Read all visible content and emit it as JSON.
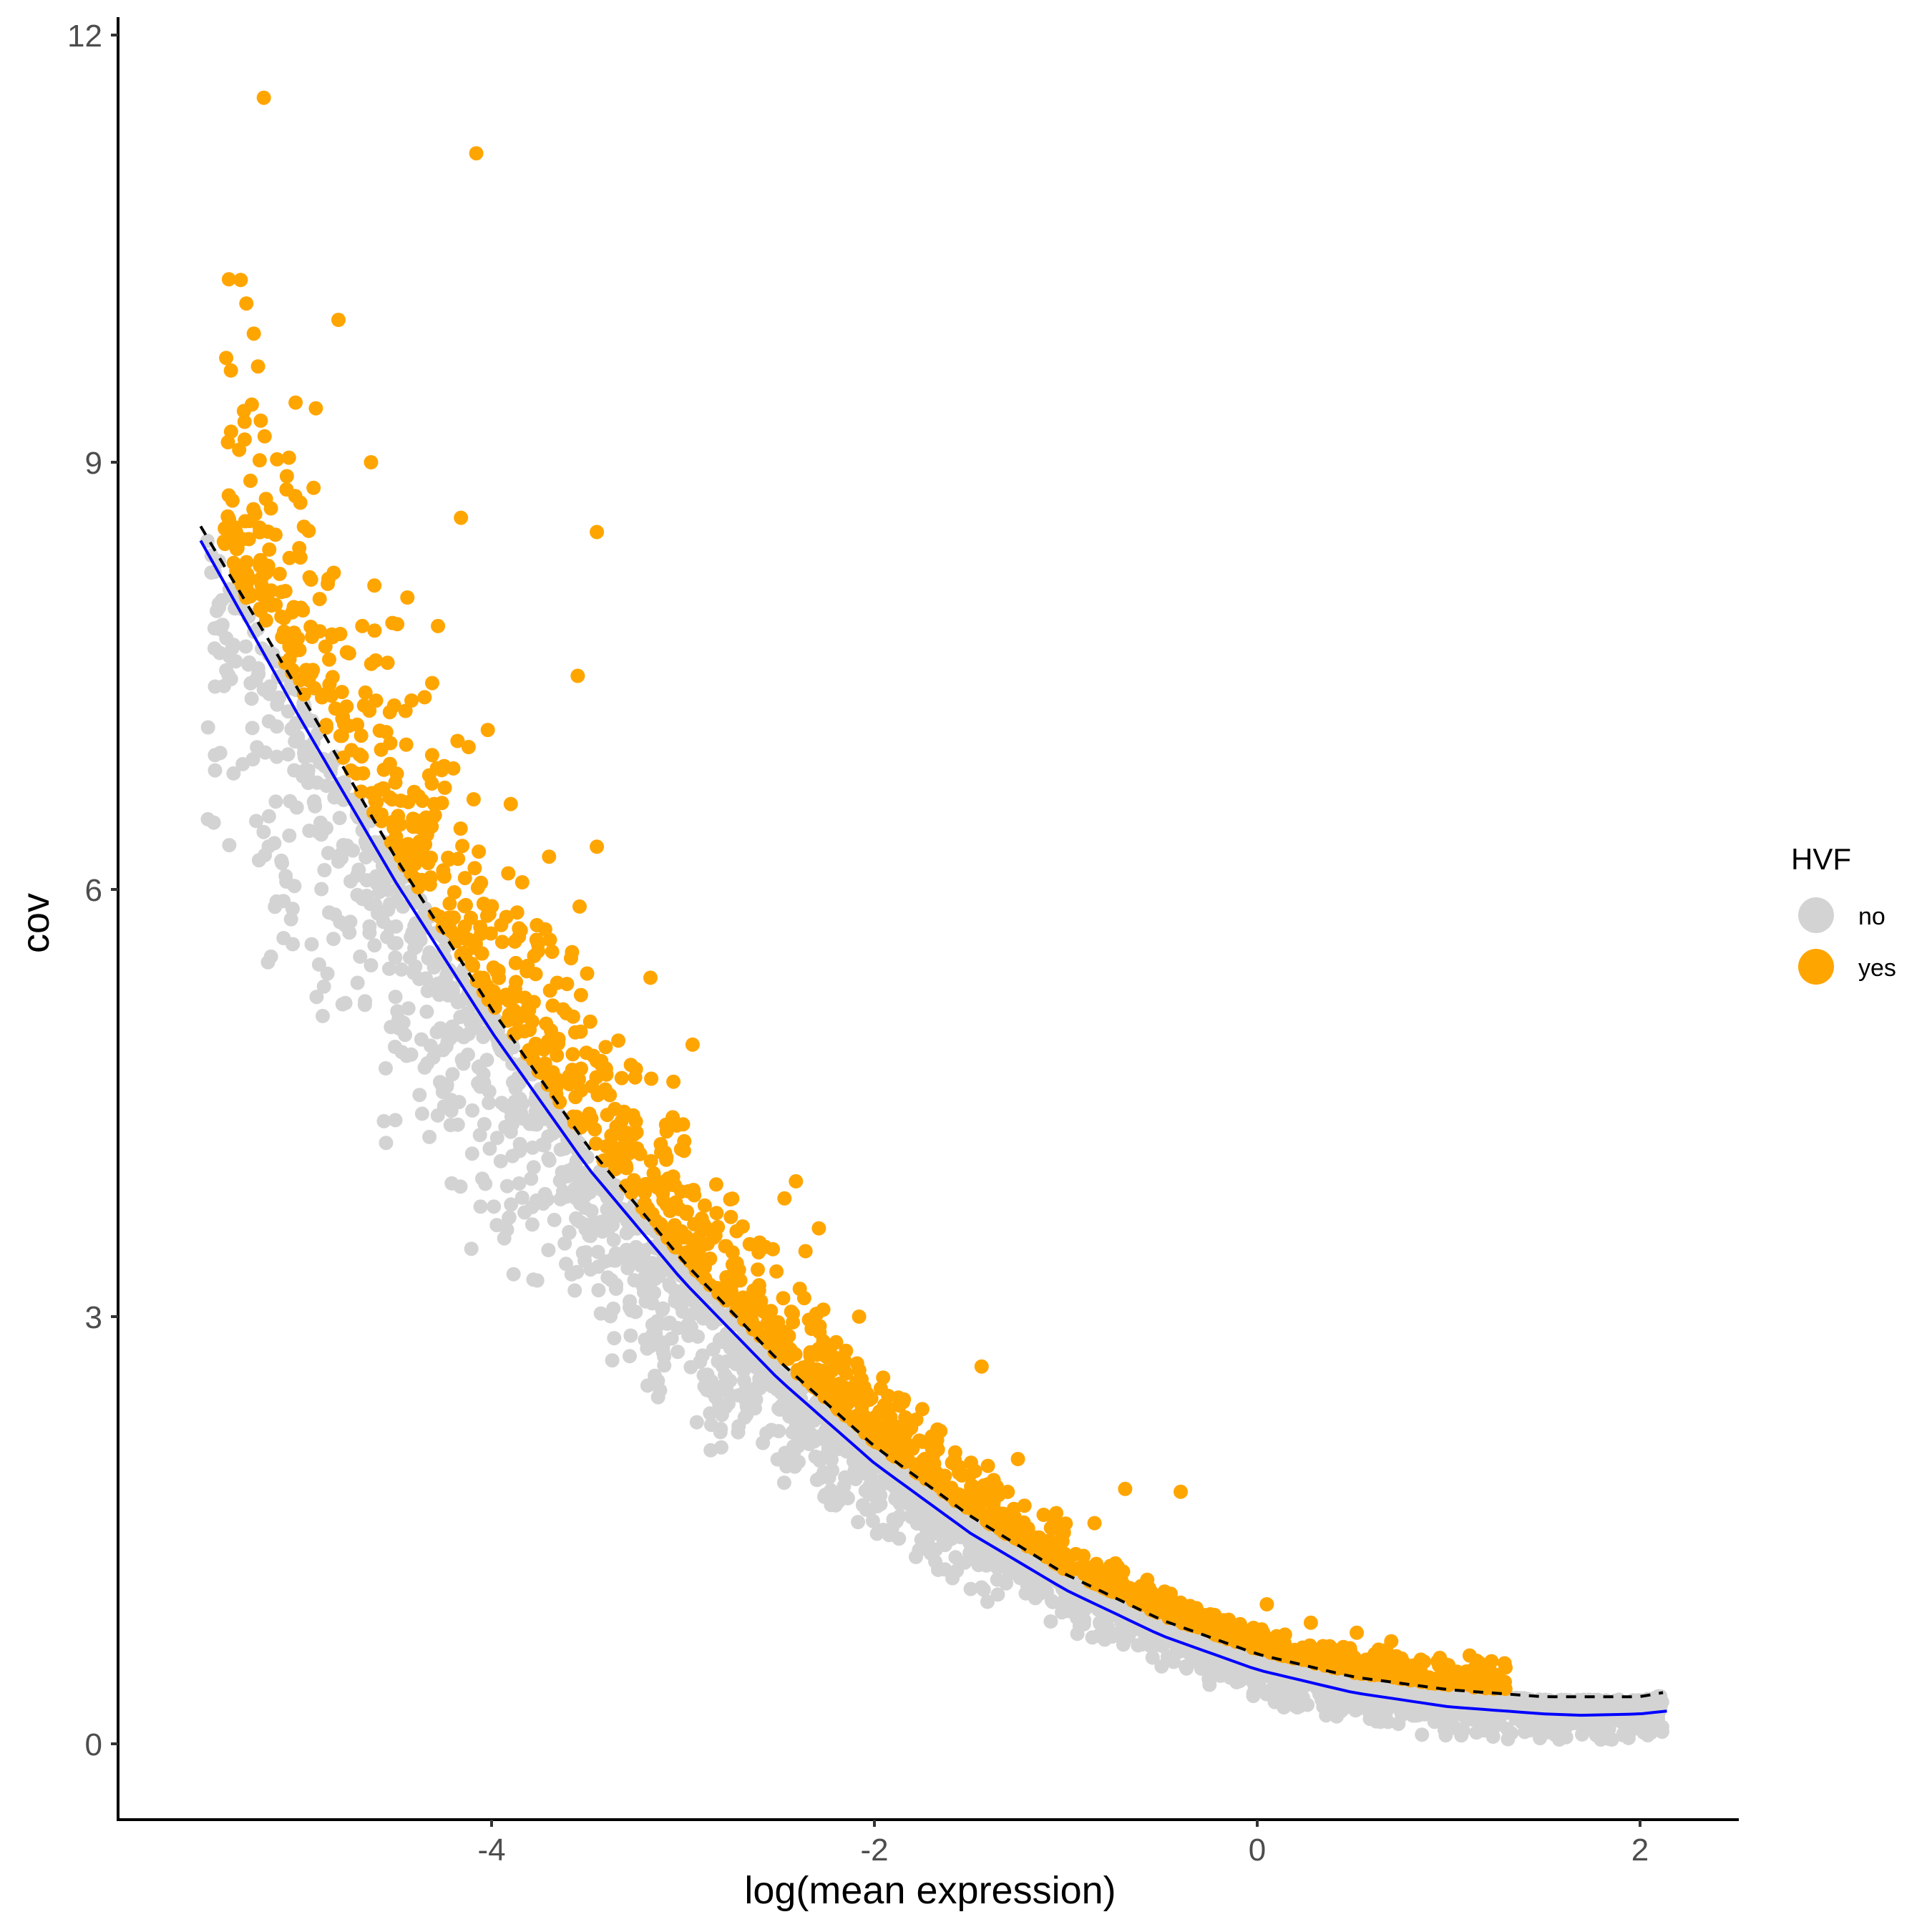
{
  "chart_data": {
    "type": "scatter",
    "title": "",
    "xlabel": "log(mean expression)",
    "ylabel": "cov",
    "xlim": [
      -5.65,
      2.5
    ],
    "ylim": [
      -0.55,
      12.3
    ],
    "x_ticks": [
      -4,
      -2,
      0,
      2
    ],
    "x_tick_labels": [
      "-4",
      "-2",
      "0",
      "2"
    ],
    "y_ticks": [
      0,
      3,
      6,
      9,
      12
    ],
    "y_tick_labels": [
      "0",
      "3",
      "6",
      "9",
      "12"
    ],
    "grid": false,
    "legend": {
      "title": "HVF",
      "position": "right",
      "entries": [
        {
          "label": "no",
          "color": "#d3d3d3"
        },
        {
          "label": "yes",
          "color": "#ffa500"
        }
      ]
    },
    "series": [
      {
        "name": "no",
        "color": "#d3d3d3",
        "description": "dense band of non-highly-variable features lying on and just below the fitted trend",
        "band": {
          "x_range": [
            -5.5,
            2.12
          ],
          "offset_below_fit": [
            0.0,
            0.45
          ],
          "count": 2600
        }
      },
      {
        "name": "yes",
        "color": "#ffa500",
        "description": "highly-variable features above the dashed threshold curve",
        "band": {
          "x_range": [
            -5.4,
            1.3
          ],
          "offset_above_fit": [
            0.05,
            0.35
          ],
          "count": 1500
        },
        "outliers": [
          [
            -5.19,
            11.56
          ],
          [
            -4.08,
            11.17
          ],
          [
            -4.8,
            10.0
          ],
          [
            -5.29,
            9.16
          ],
          [
            -4.63,
            9.0
          ],
          [
            -5.26,
            8.87
          ],
          [
            -4.93,
            8.82
          ],
          [
            -4.16,
            8.61
          ],
          [
            -3.45,
            8.51
          ],
          [
            -4.44,
            8.05
          ],
          [
            -3.55,
            7.5
          ],
          [
            -4.02,
            7.12
          ],
          [
            -3.45,
            6.3
          ],
          [
            -3.7,
            6.23
          ],
          [
            -3.54,
            5.88
          ],
          [
            -3.58,
            5.56
          ],
          [
            -3.17,
            5.38
          ],
          [
            -2.95,
            4.91
          ],
          [
            -2.47,
            3.83
          ],
          [
            -2.41,
            3.95
          ],
          [
            -2.29,
            3.62
          ],
          [
            -2.36,
            3.46
          ],
          [
            -2.08,
            3.0
          ],
          [
            -1.44,
            2.65
          ],
          [
            -0.69,
            1.79
          ],
          [
            -0.4,
            1.77
          ],
          [
            1.11,
            0.62
          ],
          [
            1.27,
            0.45
          ],
          [
            -4.28,
            7.85
          ],
          [
            -4.35,
            7.35
          ],
          [
            -4.12,
            7.0
          ],
          [
            -4.2,
            6.85
          ],
          [
            -4.3,
            6.6
          ],
          [
            -3.9,
            6.6
          ],
          [
            -3.84,
            6.05
          ],
          [
            -3.95,
            5.75
          ],
          [
            -3.72,
            5.72
          ],
          [
            -4.05,
            5.55
          ],
          [
            -3.65,
            4.95
          ],
          [
            -3.4,
            4.7
          ],
          [
            -3.25,
            4.68
          ],
          [
            -3.05,
            4.65
          ],
          [
            -3.0,
            4.35
          ],
          [
            -2.75,
            3.7
          ],
          [
            -2.72,
            3.6
          ],
          [
            -2.6,
            3.52
          ],
          [
            -2.3,
            3.02
          ],
          [
            -2.2,
            2.82
          ],
          [
            -1.85,
            2.4
          ],
          [
            -1.75,
            2.35
          ],
          [
            -1.25,
            2.0
          ],
          [
            -1.05,
            1.62
          ],
          [
            -0.85,
            1.55
          ],
          [
            0.05,
            0.98
          ],
          [
            0.28,
            0.85
          ],
          [
            0.52,
            0.78
          ],
          [
            0.7,
            0.72
          ],
          [
            0.95,
            0.55
          ],
          [
            0.45,
            0.68
          ],
          [
            0.85,
            0.52
          ]
        ]
      }
    ],
    "lines": [
      {
        "name": "fit",
        "color": "#0000ff",
        "style": "solid",
        "points": [
          [
            -5.52,
            8.45
          ],
          [
            -5.0,
            7.2
          ],
          [
            -4.5,
            6.05
          ],
          [
            -4.0,
            5.0
          ],
          [
            -3.5,
            4.05
          ],
          [
            -3.0,
            3.25
          ],
          [
            -2.5,
            2.56
          ],
          [
            -2.0,
            1.97
          ],
          [
            -1.5,
            1.48
          ],
          [
            -1.0,
            1.08
          ],
          [
            -0.5,
            0.76
          ],
          [
            0.0,
            0.52
          ],
          [
            0.5,
            0.36
          ],
          [
            1.0,
            0.26
          ],
          [
            1.5,
            0.21
          ],
          [
            1.7,
            0.2
          ],
          [
            2.0,
            0.21
          ],
          [
            2.14,
            0.23
          ]
        ]
      },
      {
        "name": "threshold",
        "color": "#000000",
        "style": "dashed",
        "points": [
          [
            -5.52,
            8.55
          ],
          [
            -5.0,
            7.38
          ],
          [
            -4.5,
            6.22
          ],
          [
            -4.0,
            5.16
          ],
          [
            -3.5,
            4.2
          ],
          [
            -3.0,
            3.39
          ],
          [
            -2.5,
            2.69
          ],
          [
            -2.0,
            2.09
          ],
          [
            -1.5,
            1.6
          ],
          [
            -1.0,
            1.19
          ],
          [
            -0.5,
            0.87
          ],
          [
            0.0,
            0.63
          ],
          [
            0.5,
            0.47
          ],
          [
            1.0,
            0.38
          ],
          [
            1.5,
            0.33
          ],
          [
            2.0,
            0.33
          ],
          [
            2.12,
            0.36
          ]
        ]
      }
    ]
  },
  "axes": {
    "x_title": "log(mean expression)",
    "y_title": "cov"
  }
}
